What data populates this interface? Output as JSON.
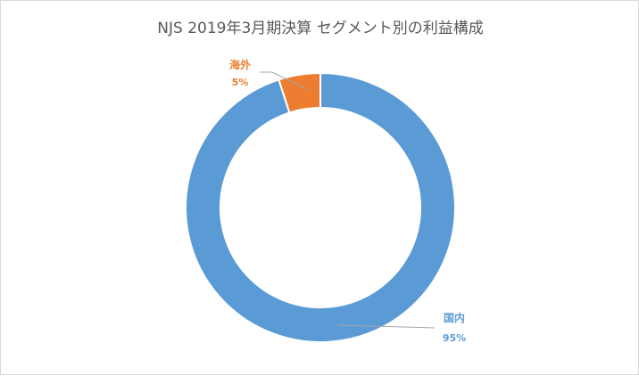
{
  "chart_data": {
    "type": "pie",
    "title": "NJS 2019年3月期決算 セグメント別の利益構成",
    "donut": true,
    "categories": [
      "国内",
      "海外"
    ],
    "values": [
      95,
      5
    ],
    "labels": [
      "95%",
      "5%"
    ],
    "colors": [
      "#5b9bd5",
      "#ed7d31"
    ],
    "legend": "none"
  }
}
